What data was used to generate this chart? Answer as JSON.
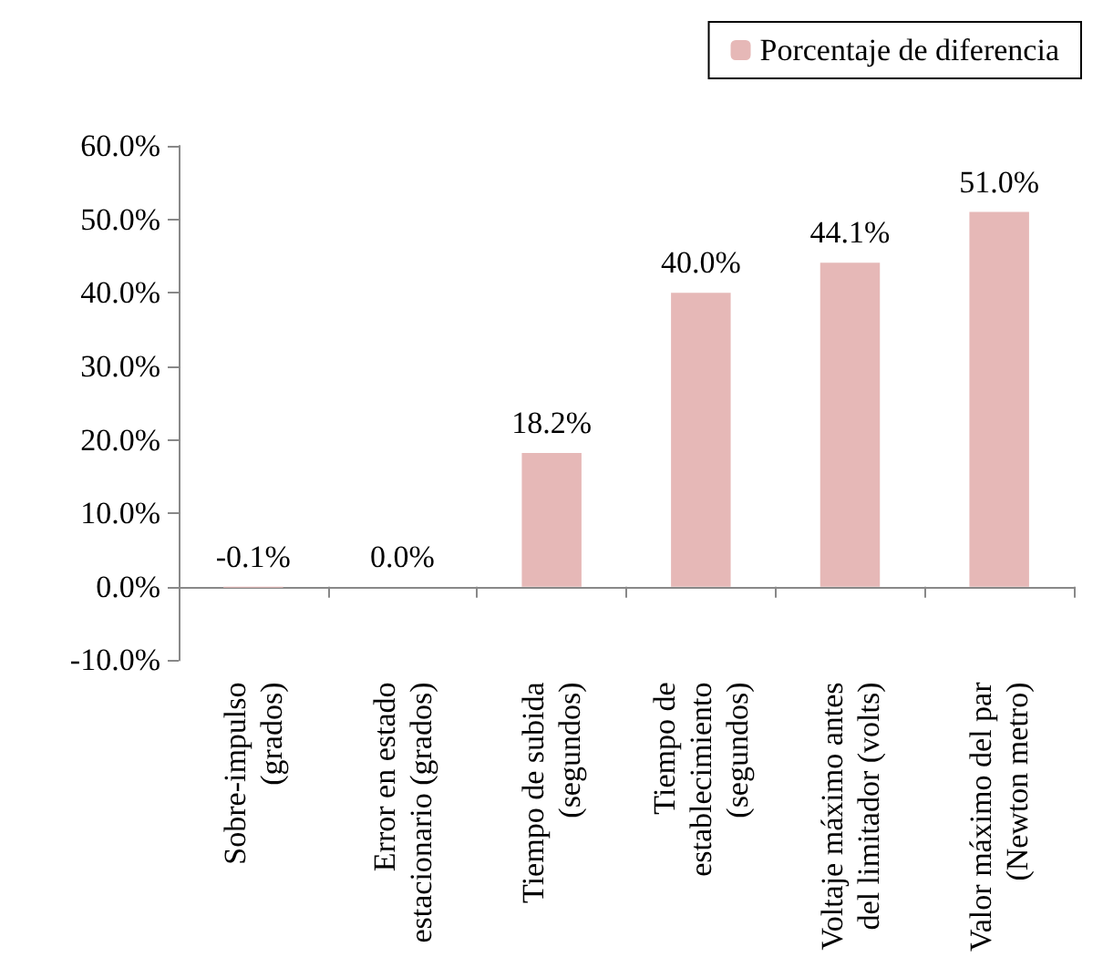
{
  "chart_data": {
    "type": "bar",
    "categories": [
      "Sobre-impulso\n(grados)",
      "Error en estado\nestacionario (grados)",
      "Tiempo de subida\n(segundos)",
      "Tiempo de\nestablecimiento\n(segundos)",
      "Voltaje máximo antes\ndel limitador (volts)",
      "Valor máximo del par\n(Newton metro)"
    ],
    "series": [
      {
        "name": "Porcentaje de diferencia",
        "color": "#e6b8b7",
        "values": [
          -0.1,
          0.0,
          18.2,
          40.0,
          44.1,
          51.0
        ],
        "value_labels": [
          "-0.1%",
          "0.0%",
          "18.2%",
          "40.0%",
          "44.1%",
          "51.0%"
        ]
      }
    ],
    "ylim": [
      -10,
      60
    ],
    "yticks": [
      {
        "value": -10,
        "label": "-10.0%"
      },
      {
        "value": 0,
        "label": "0.0%"
      },
      {
        "value": 10,
        "label": "10.0%"
      },
      {
        "value": 20,
        "label": "20.0%"
      },
      {
        "value": 30,
        "label": "30.0%"
      },
      {
        "value": 40,
        "label": "40.0%"
      },
      {
        "value": 50,
        "label": "50.0%"
      },
      {
        "value": 60,
        "label": "60.0%"
      }
    ],
    "legend": "top right"
  }
}
